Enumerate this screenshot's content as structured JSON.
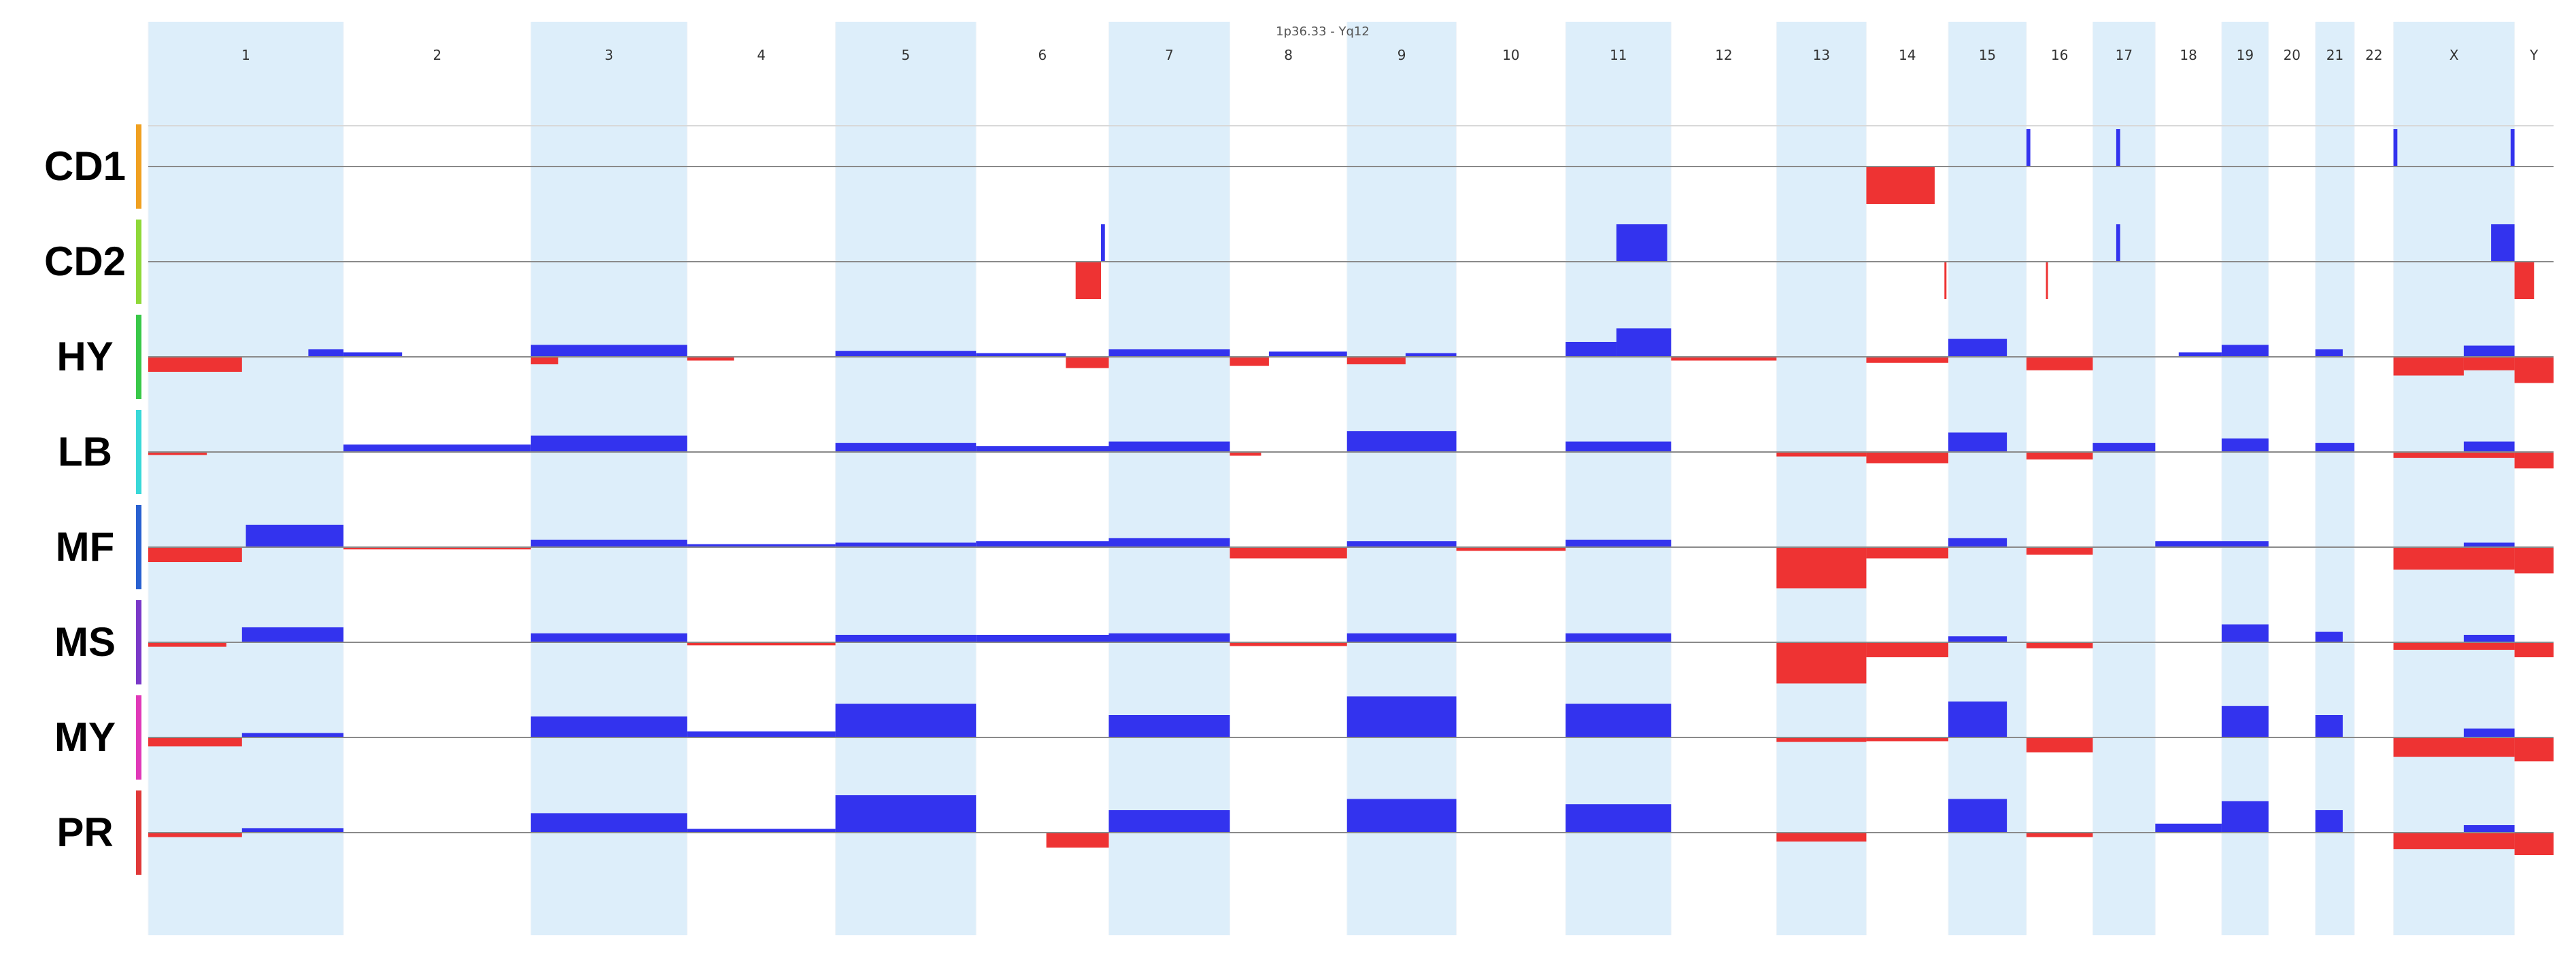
{
  "chart_data": {
    "type": "area",
    "title": "1p36.33 - Yq12",
    "xlabel": "",
    "ylabel": "",
    "grid": false,
    "colors": {
      "gain": "#3333ee",
      "loss": "#ee3333",
      "band": "#ddeefa",
      "baseline": "#8a8a8a"
    },
    "chromosomes": [
      {
        "name": "1",
        "start": 0,
        "end": 100
      },
      {
        "name": "2",
        "start": 100,
        "end": 196
      },
      {
        "name": "3",
        "start": 196,
        "end": 276
      },
      {
        "name": "4",
        "start": 276,
        "end": 352
      },
      {
        "name": "5",
        "start": 352,
        "end": 424
      },
      {
        "name": "6",
        "start": 424,
        "end": 492
      },
      {
        "name": "7",
        "start": 492,
        "end": 554
      },
      {
        "name": "8",
        "start": 554,
        "end": 614
      },
      {
        "name": "9",
        "start": 614,
        "end": 670
      },
      {
        "name": "10",
        "start": 670,
        "end": 726
      },
      {
        "name": "11",
        "start": 726,
        "end": 780
      },
      {
        "name": "12",
        "start": 780,
        "end": 834
      },
      {
        "name": "13",
        "start": 834,
        "end": 880
      },
      {
        "name": "14",
        "start": 880,
        "end": 922
      },
      {
        "name": "15",
        "start": 922,
        "end": 962
      },
      {
        "name": "16",
        "start": 962,
        "end": 996
      },
      {
        "name": "17",
        "start": 996,
        "end": 1028
      },
      {
        "name": "18",
        "start": 1028,
        "end": 1062
      },
      {
        "name": "19",
        "start": 1062,
        "end": 1086
      },
      {
        "name": "20",
        "start": 1086,
        "end": 1110
      },
      {
        "name": "21",
        "start": 1110,
        "end": 1130
      },
      {
        "name": "22",
        "start": 1130,
        "end": 1150
      },
      {
        "name": "X",
        "start": 1150,
        "end": 1212
      },
      {
        "name": "Y",
        "start": 1212,
        "end": 1232
      }
    ],
    "ylim": [
      -1,
      1
    ],
    "samples": [
      {
        "name": "CD1",
        "color": "#f0a020",
        "segments": [
          {
            "start": 962,
            "end": 964,
            "value": 0.5
          },
          {
            "start": 1008,
            "end": 1010,
            "value": 0.5
          },
          {
            "start": 1150,
            "end": 1152,
            "value": 0.5
          },
          {
            "start": 1210,
            "end": 1212,
            "value": 0.5
          },
          {
            "start": 880,
            "end": 915,
            "value": -0.5
          }
        ]
      },
      {
        "name": "CD2",
        "color": "#8ed838",
        "segments": [
          {
            "start": 488,
            "end": 490,
            "value": 0.5
          },
          {
            "start": 752,
            "end": 778,
            "value": 0.5
          },
          {
            "start": 1008,
            "end": 1010,
            "value": 0.5
          },
          {
            "start": 1200,
            "end": 1212,
            "value": 0.5
          },
          {
            "start": 475,
            "end": 488,
            "value": -0.5
          },
          {
            "start": 920,
            "end": 921,
            "value": -0.5
          },
          {
            "start": 972,
            "end": 973,
            "value": -0.5
          },
          {
            "start": 1212,
            "end": 1222,
            "value": -0.5
          }
        ]
      },
      {
        "name": "HY",
        "color": "#38c848",
        "segments": [
          {
            "start": 82,
            "end": 100,
            "value": 0.1
          },
          {
            "start": 100,
            "end": 130,
            "value": 0.06
          },
          {
            "start": 196,
            "end": 276,
            "value": 0.16
          },
          {
            "start": 352,
            "end": 424,
            "value": 0.08
          },
          {
            "start": 424,
            "end": 470,
            "value": 0.05
          },
          {
            "start": 492,
            "end": 554,
            "value": 0.1
          },
          {
            "start": 574,
            "end": 614,
            "value": 0.07
          },
          {
            "start": 644,
            "end": 670,
            "value": 0.05
          },
          {
            "start": 726,
            "end": 752,
            "value": 0.2
          },
          {
            "start": 752,
            "end": 780,
            "value": 0.38
          },
          {
            "start": 922,
            "end": 952,
            "value": 0.24
          },
          {
            "start": 1040,
            "end": 1062,
            "value": 0.06
          },
          {
            "start": 1062,
            "end": 1086,
            "value": 0.16
          },
          {
            "start": 1110,
            "end": 1124,
            "value": 0.1
          },
          {
            "start": 1186,
            "end": 1212,
            "value": 0.15
          },
          {
            "start": 0,
            "end": 48,
            "value": -0.2
          },
          {
            "start": 196,
            "end": 210,
            "value": -0.1
          },
          {
            "start": 276,
            "end": 300,
            "value": -0.05
          },
          {
            "start": 470,
            "end": 492,
            "value": -0.15
          },
          {
            "start": 554,
            "end": 574,
            "value": -0.12
          },
          {
            "start": 614,
            "end": 644,
            "value": -0.1
          },
          {
            "start": 780,
            "end": 834,
            "value": -0.05
          },
          {
            "start": 880,
            "end": 922,
            "value": -0.08
          },
          {
            "start": 962,
            "end": 996,
            "value": -0.18
          },
          {
            "start": 1150,
            "end": 1186,
            "value": -0.25
          },
          {
            "start": 1186,
            "end": 1212,
            "value": -0.18
          },
          {
            "start": 1212,
            "end": 1232,
            "value": -0.35
          }
        ]
      },
      {
        "name": "LB",
        "color": "#38d8d8",
        "segments": [
          {
            "start": 100,
            "end": 196,
            "value": 0.1
          },
          {
            "start": 196,
            "end": 276,
            "value": 0.22
          },
          {
            "start": 352,
            "end": 424,
            "value": 0.12
          },
          {
            "start": 424,
            "end": 492,
            "value": 0.08
          },
          {
            "start": 492,
            "end": 554,
            "value": 0.14
          },
          {
            "start": 614,
            "end": 670,
            "value": 0.28
          },
          {
            "start": 726,
            "end": 780,
            "value": 0.14
          },
          {
            "start": 922,
            "end": 952,
            "value": 0.26
          },
          {
            "start": 996,
            "end": 1028,
            "value": 0.12
          },
          {
            "start": 1062,
            "end": 1086,
            "value": 0.18
          },
          {
            "start": 1110,
            "end": 1130,
            "value": 0.12
          },
          {
            "start": 1186,
            "end": 1212,
            "value": 0.14
          },
          {
            "start": 0,
            "end": 30,
            "value": -0.04
          },
          {
            "start": 554,
            "end": 570,
            "value": -0.05
          },
          {
            "start": 834,
            "end": 880,
            "value": -0.06
          },
          {
            "start": 880,
            "end": 922,
            "value": -0.15
          },
          {
            "start": 962,
            "end": 996,
            "value": -0.1
          },
          {
            "start": 1150,
            "end": 1212,
            "value": -0.08
          },
          {
            "start": 1212,
            "end": 1232,
            "value": -0.22
          }
        ]
      },
      {
        "name": "MF",
        "color": "#2860d0",
        "segments": [
          {
            "start": 50,
            "end": 100,
            "value": 0.3
          },
          {
            "start": 196,
            "end": 276,
            "value": 0.1
          },
          {
            "start": 276,
            "end": 352,
            "value": 0.04
          },
          {
            "start": 352,
            "end": 424,
            "value": 0.06
          },
          {
            "start": 424,
            "end": 492,
            "value": 0.08
          },
          {
            "start": 492,
            "end": 554,
            "value": 0.12
          },
          {
            "start": 614,
            "end": 670,
            "value": 0.08
          },
          {
            "start": 726,
            "end": 780,
            "value": 0.1
          },
          {
            "start": 922,
            "end": 952,
            "value": 0.12
          },
          {
            "start": 1028,
            "end": 1086,
            "value": 0.08
          },
          {
            "start": 1186,
            "end": 1212,
            "value": 0.06
          },
          {
            "start": 0,
            "end": 48,
            "value": -0.2
          },
          {
            "start": 100,
            "end": 196,
            "value": -0.03
          },
          {
            "start": 554,
            "end": 614,
            "value": -0.15
          },
          {
            "start": 670,
            "end": 726,
            "value": -0.05
          },
          {
            "start": 834,
            "end": 880,
            "value": -0.55
          },
          {
            "start": 880,
            "end": 922,
            "value": -0.15
          },
          {
            "start": 962,
            "end": 996,
            "value": -0.1
          },
          {
            "start": 1150,
            "end": 1212,
            "value": -0.3
          },
          {
            "start": 1212,
            "end": 1232,
            "value": -0.35
          }
        ]
      },
      {
        "name": "MS",
        "color": "#7a38c8",
        "segments": [
          {
            "start": 48,
            "end": 100,
            "value": 0.2
          },
          {
            "start": 196,
            "end": 276,
            "value": 0.12
          },
          {
            "start": 352,
            "end": 424,
            "value": 0.1
          },
          {
            "start": 424,
            "end": 492,
            "value": 0.1
          },
          {
            "start": 492,
            "end": 554,
            "value": 0.12
          },
          {
            "start": 614,
            "end": 670,
            "value": 0.12
          },
          {
            "start": 726,
            "end": 780,
            "value": 0.12
          },
          {
            "start": 922,
            "end": 952,
            "value": 0.08
          },
          {
            "start": 1062,
            "end": 1086,
            "value": 0.24
          },
          {
            "start": 1110,
            "end": 1124,
            "value": 0.14
          },
          {
            "start": 1186,
            "end": 1212,
            "value": 0.1
          },
          {
            "start": 0,
            "end": 40,
            "value": -0.06
          },
          {
            "start": 276,
            "end": 352,
            "value": -0.04
          },
          {
            "start": 554,
            "end": 614,
            "value": -0.05
          },
          {
            "start": 834,
            "end": 880,
            "value": -0.55
          },
          {
            "start": 880,
            "end": 922,
            "value": -0.2
          },
          {
            "start": 962,
            "end": 996,
            "value": -0.08
          },
          {
            "start": 1150,
            "end": 1212,
            "value": -0.1
          },
          {
            "start": 1212,
            "end": 1232,
            "value": -0.2
          }
        ]
      },
      {
        "name": "MY",
        "color": "#e038b8",
        "segments": [
          {
            "start": 48,
            "end": 100,
            "value": 0.06
          },
          {
            "start": 196,
            "end": 276,
            "value": 0.28
          },
          {
            "start": 276,
            "end": 352,
            "value": 0.08
          },
          {
            "start": 352,
            "end": 424,
            "value": 0.45
          },
          {
            "start": 492,
            "end": 554,
            "value": 0.3
          },
          {
            "start": 614,
            "end": 670,
            "value": 0.55
          },
          {
            "start": 726,
            "end": 780,
            "value": 0.45
          },
          {
            "start": 922,
            "end": 952,
            "value": 0.48
          },
          {
            "start": 1062,
            "end": 1086,
            "value": 0.42
          },
          {
            "start": 1110,
            "end": 1124,
            "value": 0.3
          },
          {
            "start": 1186,
            "end": 1212,
            "value": 0.12
          },
          {
            "start": 0,
            "end": 48,
            "value": -0.12
          },
          {
            "start": 834,
            "end": 880,
            "value": -0.06
          },
          {
            "start": 880,
            "end": 922,
            "value": -0.05
          },
          {
            "start": 962,
            "end": 996,
            "value": -0.2
          },
          {
            "start": 1150,
            "end": 1212,
            "value": -0.26
          },
          {
            "start": 1212,
            "end": 1232,
            "value": -0.32
          }
        ]
      },
      {
        "name": "PR",
        "color": "#e03838",
        "segments": [
          {
            "start": 48,
            "end": 100,
            "value": 0.06
          },
          {
            "start": 196,
            "end": 276,
            "value": 0.26
          },
          {
            "start": 276,
            "end": 352,
            "value": 0.05
          },
          {
            "start": 352,
            "end": 424,
            "value": 0.5
          },
          {
            "start": 492,
            "end": 554,
            "value": 0.3
          },
          {
            "start": 614,
            "end": 670,
            "value": 0.45
          },
          {
            "start": 726,
            "end": 780,
            "value": 0.38
          },
          {
            "start": 922,
            "end": 952,
            "value": 0.45
          },
          {
            "start": 1028,
            "end": 1062,
            "value": 0.12
          },
          {
            "start": 1062,
            "end": 1086,
            "value": 0.42
          },
          {
            "start": 1110,
            "end": 1124,
            "value": 0.3
          },
          {
            "start": 1186,
            "end": 1212,
            "value": 0.1
          },
          {
            "start": 0,
            "end": 48,
            "value": -0.06
          },
          {
            "start": 460,
            "end": 492,
            "value": -0.2
          },
          {
            "start": 834,
            "end": 880,
            "value": -0.12
          },
          {
            "start": 962,
            "end": 996,
            "value": -0.06
          },
          {
            "start": 1150,
            "end": 1212,
            "value": -0.22
          },
          {
            "start": 1212,
            "end": 1232,
            "value": -0.3
          }
        ]
      }
    ]
  }
}
